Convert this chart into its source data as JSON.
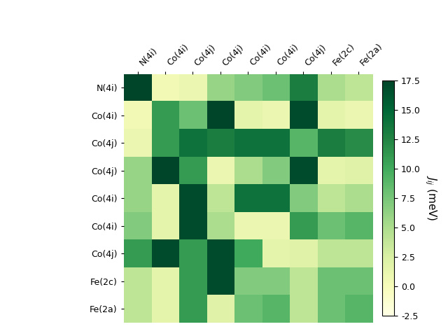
{
  "labels": [
    "N(4i)",
    "Co(4i)",
    "Co(4j)",
    "Co(4j)",
    "Co(4i)",
    "Co(4i)",
    "Co(4j)",
    "Fe(2c)",
    "Fe(2a)"
  ],
  "matrix": [
    [
      18.0,
      0.5,
      1.0,
      6.0,
      7.0,
      8.0,
      13.0,
      5.0,
      4.0
    ],
    [
      0.5,
      11.0,
      8.0,
      18.0,
      1.5,
      1.0,
      17.0,
      1.5,
      1.0
    ],
    [
      1.0,
      11.0,
      14.0,
      13.0,
      14.0,
      14.0,
      9.0,
      13.0,
      12.0
    ],
    [
      6.0,
      18.0,
      11.0,
      1.0,
      5.0,
      7.0,
      17.0,
      1.5,
      2.0
    ],
    [
      6.0,
      1.5,
      17.0,
      4.0,
      14.0,
      14.0,
      7.0,
      4.0,
      5.0
    ],
    [
      7.0,
      1.5,
      17.0,
      5.0,
      1.0,
      1.0,
      11.0,
      8.0,
      9.0
    ],
    [
      11.0,
      17.0,
      11.0,
      17.0,
      10.0,
      1.5,
      2.0,
      4.0,
      4.0
    ],
    [
      4.0,
      1.5,
      11.0,
      17.0,
      7.0,
      7.0,
      4.0,
      8.0,
      8.0
    ],
    [
      4.0,
      1.5,
      11.0,
      2.0,
      8.0,
      9.0,
      4.0,
      8.0,
      9.0
    ]
  ],
  "vmin": -2.5,
  "vmax": 17.5,
  "cmap": "YlGn",
  "colorbar_label": "$J_{ij}$ (meV)",
  "colorbar_ticks": [
    -2.5,
    0.0,
    2.5,
    5.0,
    7.5,
    10.0,
    12.5,
    15.0,
    17.5
  ],
  "figsize": [
    6.4,
    4.8
  ],
  "dpi": 100,
  "tick_fontsize": 9,
  "cbar_fontsize": 11
}
